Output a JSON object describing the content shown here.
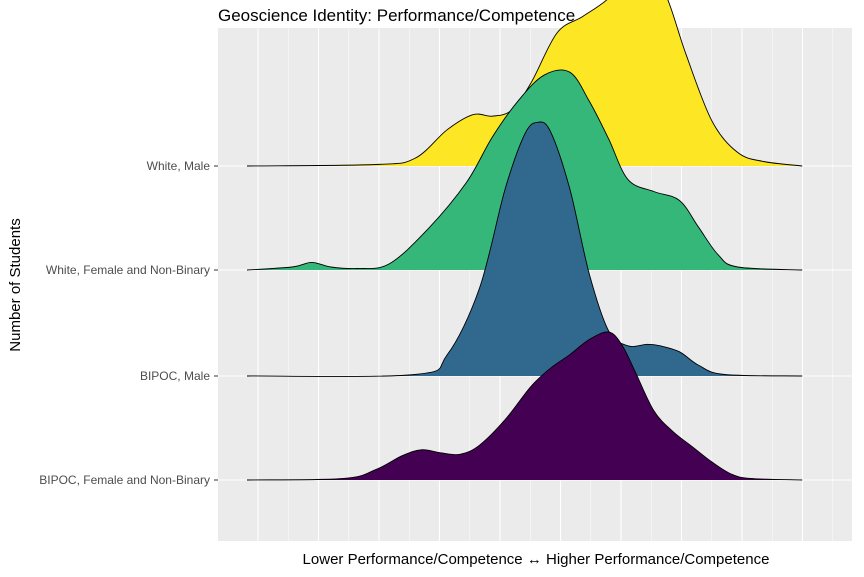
{
  "chart_data": {
    "type": "ridgeline",
    "title": "Geoscience Identity: Performance/Competence",
    "xlabel": "Lower Performance/Competence ↔ Higher Performance/Competence",
    "ylabel": "Number of Students",
    "grid": true,
    "legend": "none",
    "x_range": [
      1.0,
      5.5
    ],
    "groups": [
      {
        "label": "BIPOC, Female and Non-Binary",
        "color": "#440154",
        "density": [
          [
            1.0,
            0.0
          ],
          [
            1.75,
            0.01
          ],
          [
            2.0,
            0.07
          ],
          [
            2.2,
            0.16
          ],
          [
            2.35,
            0.2
          ],
          [
            2.5,
            0.18
          ],
          [
            2.65,
            0.17
          ],
          [
            2.8,
            0.23
          ],
          [
            3.0,
            0.4
          ],
          [
            3.2,
            0.62
          ],
          [
            3.35,
            0.74
          ],
          [
            3.5,
            0.83
          ],
          [
            3.65,
            0.93
          ],
          [
            3.8,
            0.98
          ],
          [
            3.9,
            0.9
          ],
          [
            4.0,
            0.73
          ],
          [
            4.15,
            0.46
          ],
          [
            4.3,
            0.32
          ],
          [
            4.45,
            0.22
          ],
          [
            4.6,
            0.12
          ],
          [
            4.75,
            0.04
          ],
          [
            4.9,
            0.01
          ],
          [
            5.3,
            0.0
          ]
        ]
      },
      {
        "label": "BIPOC, Male",
        "color": "#31688e",
        "density": [
          [
            1.0,
            0.0
          ],
          [
            2.3,
            0.01
          ],
          [
            2.55,
            0.14
          ],
          [
            2.8,
            0.58
          ],
          [
            3.0,
            1.24
          ],
          [
            3.15,
            1.6
          ],
          [
            3.25,
            1.68
          ],
          [
            3.35,
            1.62
          ],
          [
            3.5,
            1.24
          ],
          [
            3.65,
            0.68
          ],
          [
            3.8,
            0.3
          ],
          [
            3.95,
            0.2
          ],
          [
            4.1,
            0.21
          ],
          [
            4.2,
            0.2
          ],
          [
            4.35,
            0.16
          ],
          [
            4.5,
            0.07
          ],
          [
            4.7,
            0.01
          ],
          [
            5.3,
            0.0
          ]
        ]
      },
      {
        "label": "White, Female and Non-Binary",
        "color": "#35b779",
        "density": [
          [
            1.0,
            0.0
          ],
          [
            1.35,
            0.02
          ],
          [
            1.5,
            0.05
          ],
          [
            1.65,
            0.02
          ],
          [
            1.85,
            0.01
          ],
          [
            2.1,
            0.04
          ],
          [
            2.4,
            0.27
          ],
          [
            2.7,
            0.58
          ],
          [
            2.9,
            0.88
          ],
          [
            3.1,
            1.12
          ],
          [
            3.3,
            1.29
          ],
          [
            3.5,
            1.31
          ],
          [
            3.65,
            1.12
          ],
          [
            3.8,
            0.87
          ],
          [
            3.95,
            0.6
          ],
          [
            4.15,
            0.52
          ],
          [
            4.35,
            0.46
          ],
          [
            4.5,
            0.28
          ],
          [
            4.65,
            0.1
          ],
          [
            4.8,
            0.02
          ],
          [
            5.3,
            0.0
          ]
        ]
      },
      {
        "label": "White, Male",
        "color": "#fde725",
        "density": [
          [
            1.0,
            0.0
          ],
          [
            2.0,
            0.01
          ],
          [
            2.3,
            0.05
          ],
          [
            2.55,
            0.24
          ],
          [
            2.75,
            0.34
          ],
          [
            2.9,
            0.33
          ],
          [
            3.05,
            0.37
          ],
          [
            3.2,
            0.55
          ],
          [
            3.4,
            0.88
          ],
          [
            3.6,
            0.99
          ],
          [
            3.8,
            1.11
          ],
          [
            4.0,
            1.3
          ],
          [
            4.1,
            1.32
          ],
          [
            4.25,
            1.12
          ],
          [
            4.4,
            0.74
          ],
          [
            4.6,
            0.3
          ],
          [
            4.8,
            0.09
          ],
          [
            5.0,
            0.03
          ],
          [
            5.3,
            0.0
          ]
        ]
      }
    ]
  }
}
